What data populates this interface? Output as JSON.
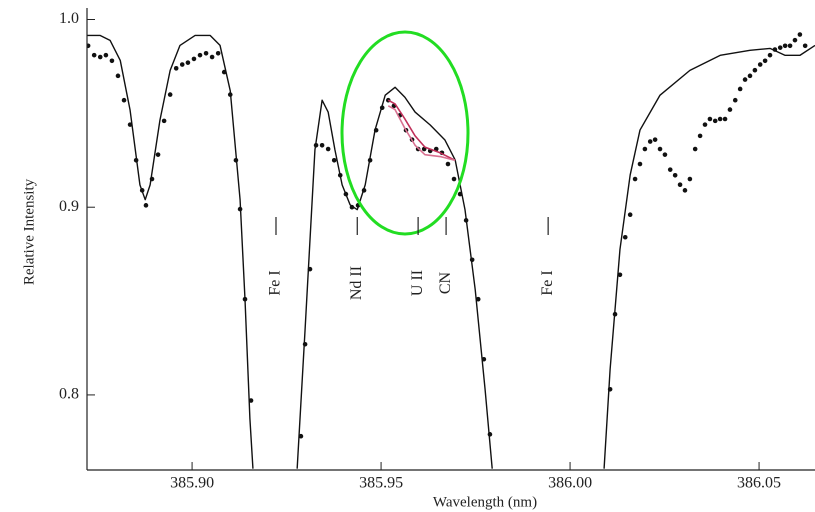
{
  "chart_data": {
    "type": "line",
    "x_label": "Wavelength (nm)",
    "y_label": "Relative Intensity",
    "xlim": [
      385.8722,
      386.0648
    ],
    "ylim": [
      0.76,
      1.004
    ],
    "xticks": [
      {
        "value": 385.9,
        "label": "385.90"
      },
      385.95,
      {
        "value": 386.0,
        "label": "386.00"
      },
      386.05
    ],
    "yticks": [
      0.8,
      0.9,
      {
        "value": 1.0,
        "label": "1.0"
      }
    ],
    "series": [
      {
        "mode": "line",
        "color": "#111111",
        "x": [
          385.8722,
          385.8757,
          385.8783,
          385.881,
          385.8836,
          385.8862,
          385.8876,
          385.8889,
          385.8915,
          385.8942,
          385.8968,
          385.9008,
          385.9048,
          385.9074,
          385.9101,
          385.9127,
          385.914,
          385.9153,
          385.9161,
          null,
          385.9278,
          385.9299,
          385.9325,
          385.9344,
          385.936,
          385.9378,
          385.9397,
          385.9418,
          385.9437,
          385.9458,
          385.9484,
          385.9511,
          385.9537,
          385.9563,
          385.959,
          385.963,
          385.9669,
          385.9696,
          385.9722,
          385.9749,
          385.9775,
          385.9794,
          null,
          386.009,
          386.0106,
          386.0132,
          386.0159,
          386.0185,
          386.0238,
          386.0317,
          386.0397,
          386.0476,
          386.0529,
          386.0569,
          386.0608,
          386.0648
        ],
        "values": [
          0.9915,
          0.9915,
          0.9889,
          0.9782,
          0.9517,
          0.9119,
          0.904,
          0.9119,
          0.9464,
          0.9729,
          0.9862,
          0.9915,
          0.9915,
          0.9862,
          0.962,
          0.904,
          0.8509,
          0.7873,
          0.7607,
          null,
          0.7607,
          0.835,
          0.9305,
          0.957,
          0.9507,
          0.9305,
          0.9119,
          0.9013,
          0.8987,
          0.9119,
          0.9411,
          0.9597,
          0.9639,
          0.9586,
          0.9507,
          0.9438,
          0.9358,
          0.9252,
          0.8987,
          0.8562,
          0.8033,
          0.7607,
          null,
          0.7607,
          0.8138,
          0.8775,
          0.9172,
          0.9411,
          0.9597,
          0.9729,
          0.9809,
          0.9836,
          0.9846,
          0.9809,
          0.9809,
          0.9862
        ]
      },
      {
        "mode": "markers",
        "color": "#111111",
        "x": [
          385.8725,
          385.8741,
          385.8757,
          385.8772,
          385.8788,
          385.8804,
          385.882,
          385.8836,
          385.8852,
          385.8868,
          385.8878,
          385.8894,
          385.891,
          385.8926,
          385.8942,
          385.8958,
          385.8974,
          385.8989,
          385.9005,
          385.9021,
          385.9037,
          385.9053,
          385.9069,
          385.9085,
          385.9101,
          385.9116,
          385.9127,
          385.914,
          385.9156,
          385.9288,
          385.9299,
          385.9312,
          385.9328,
          385.9344,
          385.936,
          385.9376,
          385.9392,
          385.9407,
          385.9423,
          385.9439,
          385.9455,
          385.9471,
          385.9487,
          385.9503,
          385.9519,
          385.9534,
          385.955,
          385.9566,
          385.9582,
          385.9598,
          385.9614,
          385.963,
          385.9646,
          385.9661,
          385.9677,
          385.9693,
          385.9709,
          385.9725,
          385.9741,
          385.9757,
          385.9772,
          385.9788,
          386.0106,
          386.0119,
          386.0132,
          386.0146,
          386.0159,
          386.0172,
          386.0185,
          386.0198,
          386.0212,
          386.0225,
          386.0238,
          386.0251,
          386.0265,
          386.0278,
          386.0291,
          386.0304,
          386.0317,
          386.0331,
          386.0344,
          386.0357,
          386.037,
          386.0384,
          386.0397,
          386.041,
          386.0423,
          386.0437,
          386.045,
          386.0463,
          386.0476,
          386.0489,
          386.0503,
          386.0516,
          386.0529,
          386.0542,
          386.0556,
          386.0569,
          386.0582,
          386.0595,
          386.0608,
          386.0622
        ],
        "values": [
          0.986,
          0.981,
          0.98,
          0.981,
          0.978,
          0.97,
          0.957,
          0.944,
          0.925,
          0.909,
          0.901,
          0.915,
          0.928,
          0.946,
          0.96,
          0.974,
          0.976,
          0.977,
          0.979,
          0.981,
          0.982,
          0.98,
          0.982,
          0.972,
          0.96,
          0.925,
          0.899,
          0.851,
          0.797,
          0.778,
          0.827,
          0.867,
          0.933,
          0.933,
          0.931,
          0.925,
          0.917,
          0.907,
          0.9,
          0.901,
          0.909,
          0.925,
          0.941,
          0.953,
          0.957,
          0.954,
          0.949,
          0.941,
          0.936,
          0.931,
          0.931,
          0.93,
          0.931,
          0.929,
          0.923,
          0.915,
          0.907,
          0.893,
          0.872,
          0.851,
          0.819,
          0.779,
          0.803,
          0.843,
          0.864,
          0.884,
          0.896,
          0.915,
          0.923,
          0.931,
          0.935,
          0.936,
          0.931,
          0.928,
          0.92,
          0.917,
          0.912,
          0.909,
          0.915,
          0.931,
          0.938,
          0.944,
          0.947,
          0.946,
          0.947,
          0.947,
          0.952,
          0.957,
          0.963,
          0.968,
          0.97,
          0.973,
          0.976,
          0.978,
          0.981,
          0.984,
          0.985,
          0.986,
          0.986,
          0.989,
          0.992,
          0.986
        ]
      },
      {
        "mode": "line",
        "color": "#c0305a",
        "x": [
          385.9519,
          385.9537,
          385.9563,
          385.959,
          385.9616,
          385.9656,
          385.9696
        ],
        "values": [
          0.957,
          0.955,
          0.947,
          0.938,
          0.932,
          0.929,
          0.925
        ]
      },
      {
        "mode": "line",
        "color": "#d87090",
        "x": [
          385.9519,
          385.9537,
          385.9563,
          385.959,
          385.9616,
          385.9656,
          385.9696
        ],
        "values": [
          0.954,
          0.952,
          0.942,
          0.933,
          0.928,
          0.927,
          0.925
        ]
      }
    ],
    "annotations": [
      {
        "text": "Fe I",
        "x": 385.9222
      },
      {
        "text": "Nd II",
        "x": 385.9437
      },
      {
        "text": "U II",
        "x": 385.9598
      },
      {
        "text": "CN",
        "x": 385.9672
      },
      {
        "text": "Fe I",
        "x": 385.9942
      }
    ]
  }
}
